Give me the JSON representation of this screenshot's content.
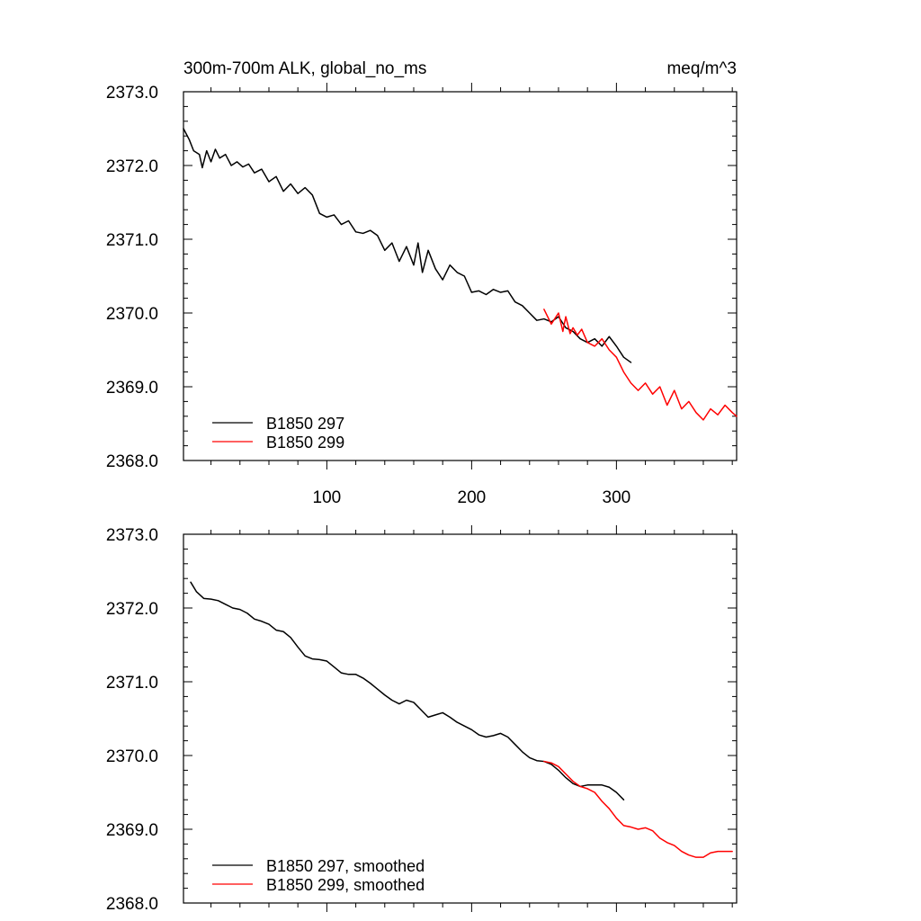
{
  "chart_data": [
    {
      "type": "line",
      "title": "300m-700m ALK, global_no_ms",
      "units": "meq/m^3",
      "xlim": [
        1,
        383
      ],
      "ylim": [
        2368.0,
        2373.0
      ],
      "yticks": [
        "2368.0",
        "2369.0",
        "2370.0",
        "2371.0",
        "2372.0",
        "2373.0"
      ],
      "xticks": [
        "100",
        "200",
        "300"
      ],
      "legend_position": "bottom-left",
      "series": [
        {
          "name": "B1850 297",
          "color": "#000000",
          "x": [
            1,
            5,
            8,
            12,
            14,
            17,
            20,
            23,
            26,
            30,
            34,
            38,
            42,
            46,
            50,
            55,
            60,
            65,
            70,
            75,
            80,
            85,
            90,
            95,
            100,
            105,
            110,
            115,
            120,
            125,
            130,
            135,
            140,
            145,
            150,
            155,
            160,
            163,
            166,
            170,
            175,
            180,
            185,
            190,
            195,
            200,
            205,
            210,
            215,
            220,
            225,
            230,
            235,
            240,
            245,
            250,
            255,
            260,
            265,
            270,
            275,
            280,
            285,
            290,
            295,
            300,
            305,
            310
          ],
          "y": [
            2372.5,
            2372.35,
            2372.2,
            2372.15,
            2371.97,
            2372.2,
            2372.05,
            2372.22,
            2372.1,
            2372.15,
            2372.0,
            2372.05,
            2371.98,
            2372.02,
            2371.9,
            2371.95,
            2371.78,
            2371.85,
            2371.65,
            2371.75,
            2371.62,
            2371.7,
            2371.6,
            2371.35,
            2371.3,
            2371.33,
            2371.2,
            2371.25,
            2371.1,
            2371.08,
            2371.12,
            2371.05,
            2370.85,
            2370.95,
            2370.7,
            2370.9,
            2370.65,
            2370.95,
            2370.55,
            2370.85,
            2370.6,
            2370.45,
            2370.65,
            2370.55,
            2370.5,
            2370.28,
            2370.3,
            2370.25,
            2370.32,
            2370.28,
            2370.3,
            2370.15,
            2370.1,
            2370.0,
            2369.9,
            2369.92,
            2369.88,
            2369.95,
            2369.8,
            2369.75,
            2369.65,
            2369.6,
            2369.65,
            2369.55,
            2369.68,
            2369.55,
            2369.4,
            2369.33
          ]
        },
        {
          "name": "B1850 299",
          "color": "#ff0000",
          "x": [
            250,
            255,
            260,
            263,
            265,
            268,
            270,
            273,
            276,
            280,
            285,
            290,
            295,
            300,
            305,
            310,
            315,
            320,
            325,
            330,
            335,
            340,
            345,
            350,
            355,
            360,
            365,
            370,
            375,
            380,
            383
          ],
          "y": [
            2370.05,
            2369.85,
            2370.0,
            2369.75,
            2369.95,
            2369.72,
            2369.8,
            2369.7,
            2369.78,
            2369.6,
            2369.55,
            2369.65,
            2369.5,
            2369.4,
            2369.2,
            2369.05,
            2368.95,
            2369.05,
            2368.9,
            2369.0,
            2368.75,
            2368.95,
            2368.7,
            2368.8,
            2368.65,
            2368.55,
            2368.7,
            2368.62,
            2368.75,
            2368.65,
            2368.6
          ]
        }
      ]
    },
    {
      "type": "line",
      "title": "",
      "xlim": [
        1,
        383
      ],
      "ylim": [
        2368.0,
        2373.0
      ],
      "yticks": [
        "2368.0",
        "2369.0",
        "2370.0",
        "2371.0",
        "2372.0",
        "2373.0"
      ],
      "legend_position": "bottom-left",
      "series": [
        {
          "name": "B1850 297, smoothed",
          "color": "#000000",
          "x": [
            6,
            10,
            15,
            20,
            25,
            30,
            35,
            40,
            45,
            50,
            55,
            60,
            65,
            70,
            75,
            80,
            85,
            90,
            95,
            100,
            105,
            110,
            115,
            120,
            125,
            130,
            135,
            140,
            145,
            150,
            155,
            160,
            165,
            170,
            175,
            180,
            185,
            190,
            195,
            200,
            205,
            210,
            215,
            220,
            225,
            230,
            235,
            240,
            245,
            250,
            255,
            260,
            265,
            270,
            275,
            280,
            285,
            290,
            295,
            300,
            305
          ],
          "y": [
            2372.35,
            2372.22,
            2372.13,
            2372.12,
            2372.1,
            2372.05,
            2372.0,
            2371.98,
            2371.93,
            2371.85,
            2371.82,
            2371.78,
            2371.7,
            2371.68,
            2371.6,
            2371.47,
            2371.35,
            2371.31,
            2371.3,
            2371.28,
            2371.2,
            2371.12,
            2371.1,
            2371.1,
            2371.05,
            2370.98,
            2370.9,
            2370.82,
            2370.75,
            2370.7,
            2370.75,
            2370.72,
            2370.62,
            2370.52,
            2370.55,
            2370.58,
            2370.52,
            2370.45,
            2370.4,
            2370.35,
            2370.28,
            2370.25,
            2370.27,
            2370.3,
            2370.25,
            2370.15,
            2370.05,
            2369.97,
            2369.93,
            2369.92,
            2369.88,
            2369.8,
            2369.7,
            2369.62,
            2369.58,
            2369.6,
            2369.6,
            2369.6,
            2369.57,
            2369.5,
            2369.4
          ]
        },
        {
          "name": "B1850 299, smoothed",
          "color": "#ff0000",
          "x": [
            250,
            255,
            260,
            265,
            270,
            275,
            280,
            285,
            290,
            295,
            300,
            305,
            310,
            315,
            320,
            325,
            330,
            335,
            340,
            345,
            350,
            355,
            360,
            365,
            370,
            375,
            380
          ],
          "y": [
            2369.92,
            2369.9,
            2369.85,
            2369.75,
            2369.65,
            2369.58,
            2369.55,
            2369.5,
            2369.38,
            2369.28,
            2369.15,
            2369.05,
            2369.03,
            2369.0,
            2369.02,
            2368.98,
            2368.88,
            2368.82,
            2368.78,
            2368.7,
            2368.65,
            2368.62,
            2368.62,
            2368.68,
            2368.7,
            2368.7,
            2368.7
          ]
        }
      ]
    }
  ]
}
